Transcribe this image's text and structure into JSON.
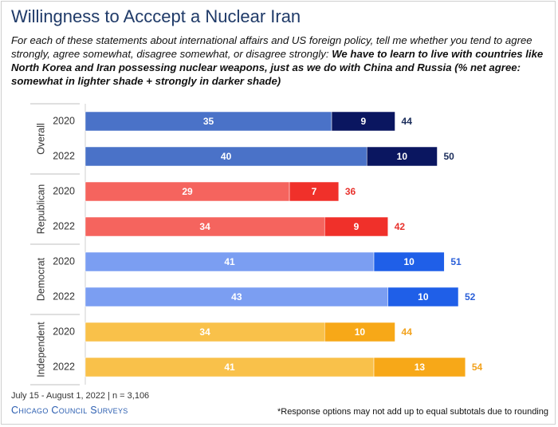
{
  "title": "Willingness to Acccept a Nuclear Iran",
  "subtitle": {
    "intro": "For each of these statements about international affairs and US foreign policy, tell me whether you tend to agree strongly, agree somewhat, disagree somewhat, or disagree strongly: ",
    "statement": "We have to learn to live with countries like North Korea and Iran possessing nuclear weapons, just as we do with China and Russia (% net agree: somewhat in lighter shade + strongly in darker shade)"
  },
  "footer": {
    "date": "July 15 - August 1, 2022 | n = 3,106",
    "brand": "Chicago Council Surveys",
    "note": "*Response options may not add up to equal subtotals due to rounding"
  },
  "chart_data": {
    "type": "bar",
    "orientation": "horizontal",
    "stacked": true,
    "xlim": [
      0,
      60
    ],
    "grid": false,
    "legend": "none",
    "groups": [
      {
        "name": "Overall",
        "colors": {
          "somewhat": "#4a72c8",
          "strongly": "#0a1660",
          "total_label": "#1a2c5a"
        },
        "rows": [
          {
            "year": "2020",
            "somewhat": 35,
            "strongly": 9,
            "total": 44
          },
          {
            "year": "2022",
            "somewhat": 40,
            "strongly": 10,
            "total": 50
          }
        ]
      },
      {
        "name": "Republican",
        "colors": {
          "somewhat": "#f5645e",
          "strongly": "#f0302a",
          "total_label": "#e8322d"
        },
        "rows": [
          {
            "year": "2020",
            "somewhat": 29,
            "strongly": 7,
            "total": 36
          },
          {
            "year": "2022",
            "somewhat": 34,
            "strongly": 9,
            "total": 42
          }
        ]
      },
      {
        "name": "Democrat",
        "colors": {
          "somewhat": "#7b9ef2",
          "strongly": "#1f5fe8",
          "total_label": "#2a5fd8"
        },
        "rows": [
          {
            "year": "2020",
            "somewhat": 41,
            "strongly": 10,
            "total": 51
          },
          {
            "year": "2022",
            "somewhat": 43,
            "strongly": 10,
            "total": 52
          }
        ]
      },
      {
        "name": "Independent",
        "colors": {
          "somewhat": "#f9c14a",
          "strongly": "#f7a818",
          "total_label": "#f2a21d"
        },
        "rows": [
          {
            "year": "2020",
            "somewhat": 34,
            "strongly": 10,
            "total": 44
          },
          {
            "year": "2022",
            "somewhat": 41,
            "strongly": 13,
            "total": 54
          }
        ]
      }
    ]
  }
}
